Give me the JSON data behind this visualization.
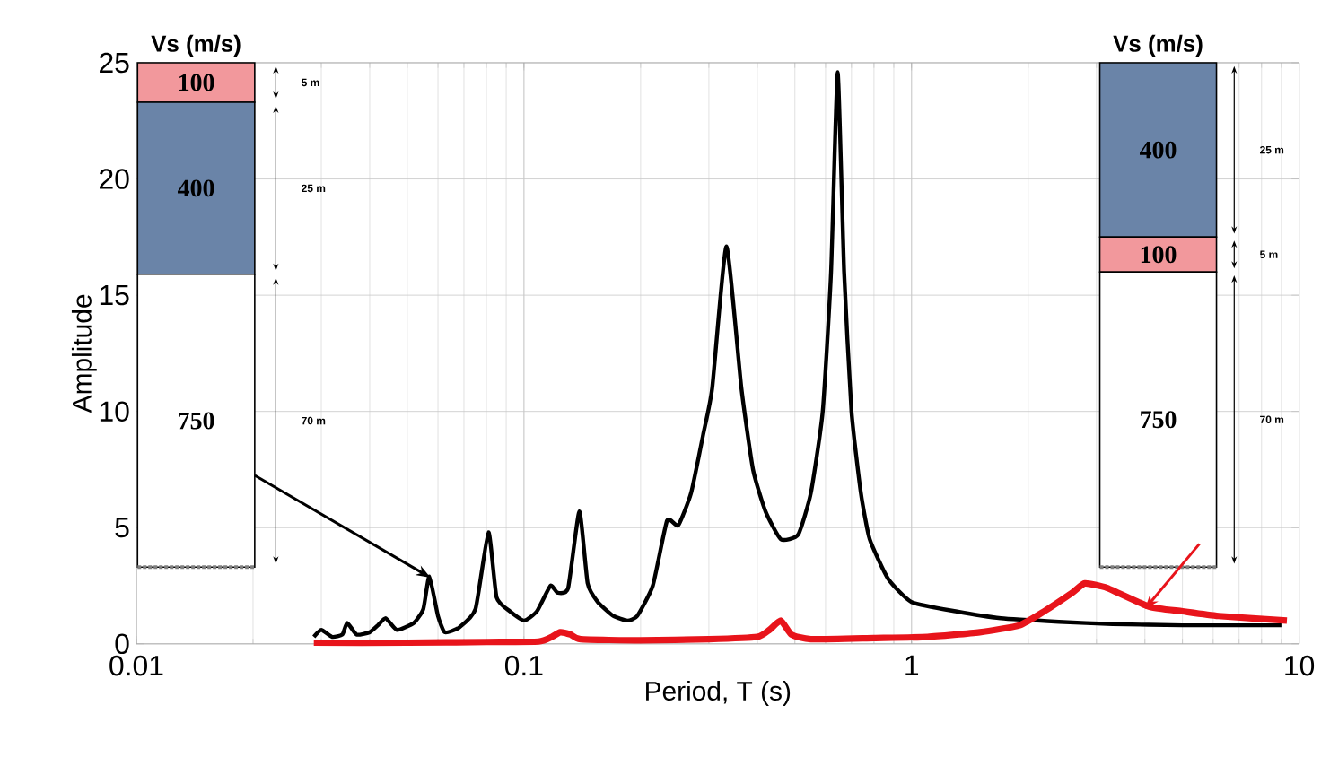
{
  "chart_data": {
    "type": "line",
    "xlabel": "Period, T (s)",
    "ylabel": "Amplitude",
    "log": "x",
    "grid": true,
    "marker": "none",
    "line_style": "solid",
    "xlim": [
      0.01,
      10
    ],
    "xticks": [
      0.01,
      0.1,
      1,
      10
    ],
    "ylim": [
      0,
      25
    ],
    "yticks": [
      0,
      5,
      10,
      15,
      20,
      25
    ],
    "series": [
      {
        "color": "#000000",
        "x": [
          0.0287,
          0.03,
          0.032,
          0.034,
          0.035,
          0.037,
          0.04,
          0.042,
          0.044,
          0.047,
          0.052,
          0.055,
          0.057,
          0.06,
          0.0625,
          0.068,
          0.075,
          0.081,
          0.085,
          0.092,
          0.1,
          0.108,
          0.117,
          0.122,
          0.13,
          0.139,
          0.146,
          0.155,
          0.17,
          0.185,
          0.196,
          0.215,
          0.234,
          0.25,
          0.27,
          0.29,
          0.306,
          0.333,
          0.364,
          0.39,
          0.42,
          0.46,
          0.51,
          0.55,
          0.59,
          0.62,
          0.645,
          0.67,
          0.7,
          0.74,
          0.78,
          0.87,
          1,
          1.3,
          1.7,
          2.4,
          3.3,
          5,
          9
        ],
        "values": [
          0.3,
          0.6,
          0.3,
          0.4,
          0.9,
          0.4,
          0.5,
          0.8,
          1.1,
          0.6,
          0.9,
          1.5,
          2.9,
          1.2,
          0.5,
          0.7,
          1.5,
          4.8,
          2.0,
          1.4,
          1.0,
          1.4,
          2.5,
          2.2,
          2.4,
          5.7,
          2.6,
          1.8,
          1.2,
          1.0,
          1.2,
          2.5,
          5.3,
          5.1,
          6.5,
          9.0,
          11.0,
          17.1,
          11.0,
          7.5,
          5.7,
          4.5,
          4.7,
          6.5,
          10.0,
          16.0,
          24.6,
          16.0,
          10.0,
          6.5,
          4.5,
          2.8,
          1.8,
          1.4,
          1.1,
          0.95,
          0.85,
          0.8,
          0.8
        ]
      },
      {
        "color": "#e8141b",
        "x": [
          0.0287,
          0.05,
          0.08,
          0.109,
          0.118,
          0.124,
          0.132,
          0.14,
          0.2,
          0.3,
          0.4,
          0.43,
          0.46,
          0.49,
          0.55,
          0.8,
          1.1,
          1.5,
          1.9,
          2.2,
          2.6,
          2.8,
          3.2,
          4.1,
          5,
          6.2,
          9.3
        ],
        "values": [
          0.05,
          0.05,
          0.08,
          0.1,
          0.3,
          0.5,
          0.4,
          0.2,
          0.15,
          0.2,
          0.3,
          0.6,
          1.0,
          0.4,
          0.2,
          0.25,
          0.3,
          0.5,
          0.8,
          1.4,
          2.2,
          2.6,
          2.4,
          1.6,
          1.4,
          1.2,
          1.0
        ]
      }
    ],
    "annotations": [
      "Vs (m/s)",
      "100",
      "400",
      "750",
      "5 m",
      "25 m",
      "70 m",
      "Vs (m/s)",
      "400",
      "100",
      "750",
      "25 m",
      "5 m",
      "70 m"
    ]
  }
}
